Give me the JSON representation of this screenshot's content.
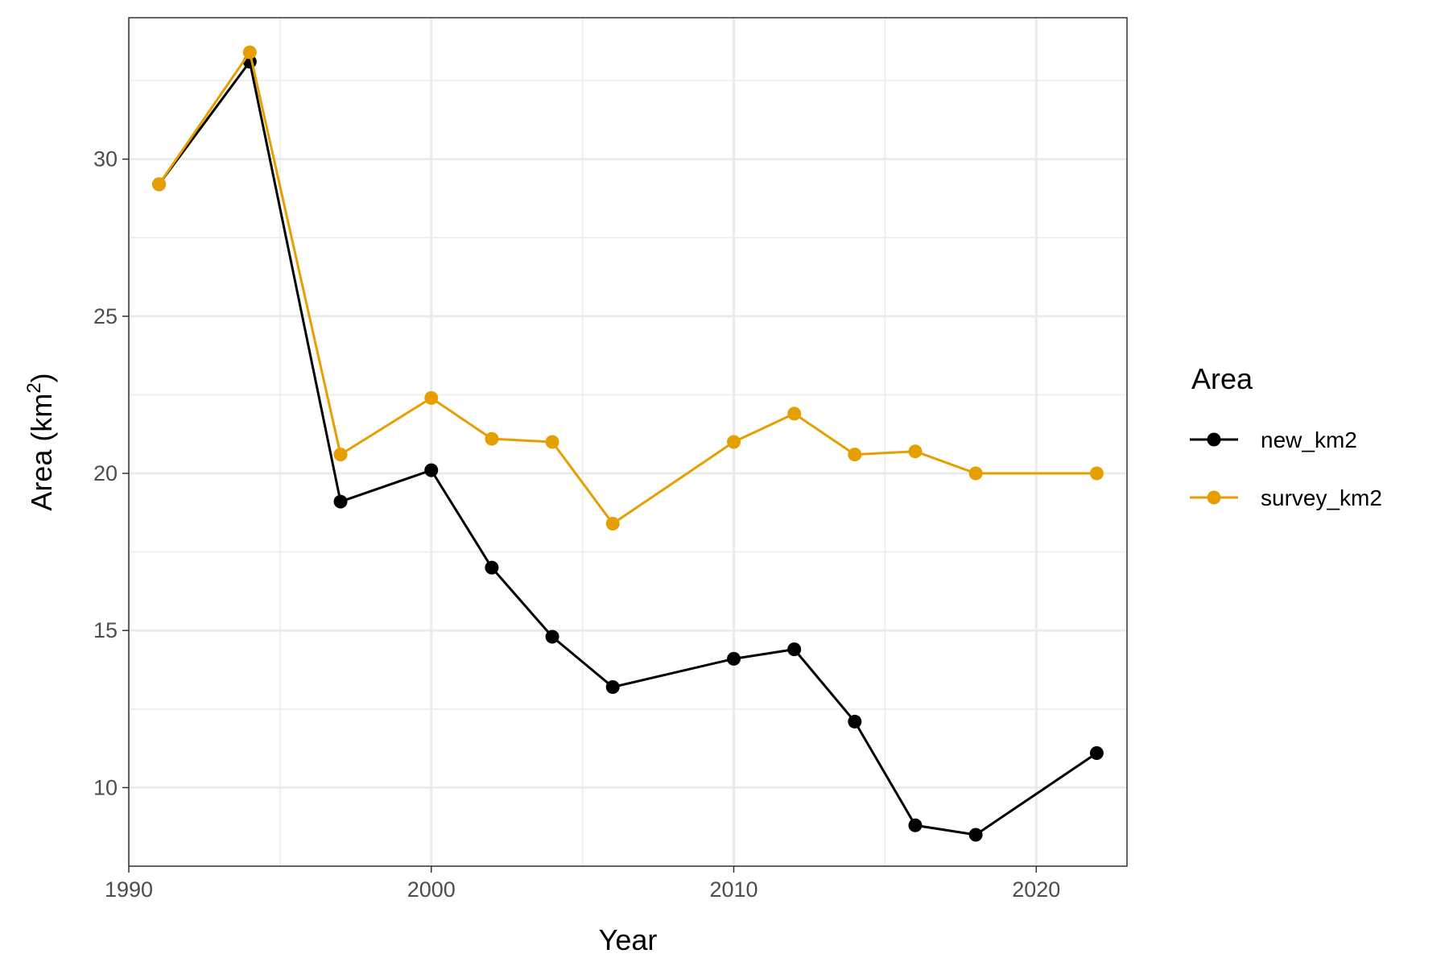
{
  "chart_data": {
    "type": "line",
    "title": "",
    "xlabel": "Year",
    "ylabel": "Area (km",
    "ylabel_superscript": "2",
    "ylabel_suffix": ")",
    "xlim": [
      1990,
      2023
    ],
    "ylim": [
      7.5,
      34.5
    ],
    "x_ticks": [
      1990,
      2000,
      2010,
      2020
    ],
    "y_ticks": [
      10,
      15,
      20,
      25,
      30
    ],
    "x_tick_labels": [
      "1990",
      "2000",
      "2010",
      "2020"
    ],
    "y_tick_labels": [
      "10",
      "15",
      "20",
      "25",
      "30"
    ],
    "grid": true,
    "legend": {
      "title": "Area",
      "position": "right"
    },
    "x": [
      1991,
      1994,
      1997,
      2000,
      2002,
      2004,
      2006,
      2010,
      2012,
      2014,
      2016,
      2018,
      2022
    ],
    "series": [
      {
        "name": "new_km2",
        "color": "#000000",
        "values": [
          29.2,
          33.1,
          19.1,
          20.1,
          17.0,
          14.8,
          13.2,
          14.1,
          14.4,
          12.1,
          8.8,
          8.5,
          11.1
        ]
      },
      {
        "name": "survey_km2",
        "color": "#E69F00",
        "values": [
          29.2,
          33.4,
          20.6,
          22.4,
          21.1,
          21.0,
          18.4,
          21.0,
          21.9,
          20.6,
          20.7,
          20.0,
          20.0
        ]
      }
    ]
  }
}
